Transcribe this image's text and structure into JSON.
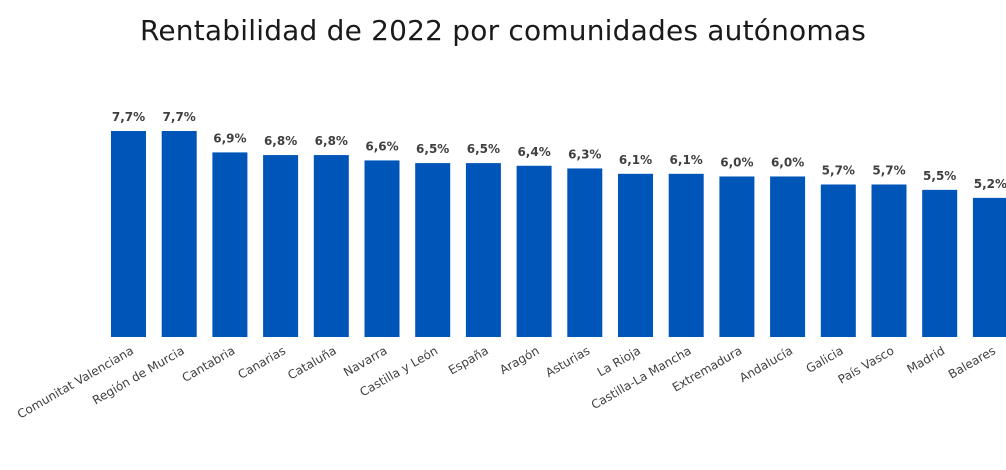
{
  "chart_data": {
    "type": "bar",
    "title": "Rentabilidad de 2022 por comunidades autónomas",
    "xlabel": "",
    "ylabel": "",
    "ylim": [
      0,
      7.7
    ],
    "grid": false,
    "legend": "none",
    "bar_color": "#0055B8",
    "categories": [
      "Comunitat Valenciana",
      "Región de Murcia",
      "Cantabria",
      "Canarias",
      "Cataluña",
      "Navarra",
      "Castilla y León",
      "España",
      "Aragón",
      "Asturias",
      "La Rioja",
      "Castilla-La Mancha",
      "Extremadura",
      "Andalucía",
      "Galicia",
      "País Vasco",
      "Madrid",
      "Baleares"
    ],
    "values": [
      7.7,
      7.7,
      6.9,
      6.8,
      6.8,
      6.6,
      6.5,
      6.5,
      6.4,
      6.3,
      6.1,
      6.1,
      6.0,
      6.0,
      5.7,
      5.7,
      5.5,
      5.2
    ],
    "data_labels": [
      "7,7%",
      "7,7%",
      "6,9%",
      "6,8%",
      "6,8%",
      "6,6%",
      "6,5%",
      "6,5%",
      "6,4%",
      "6,3%",
      "6,1%",
      "6,1%",
      "6,0%",
      "6,0%",
      "5,7%",
      "5,7%",
      "5,5%",
      "5,2%"
    ]
  }
}
